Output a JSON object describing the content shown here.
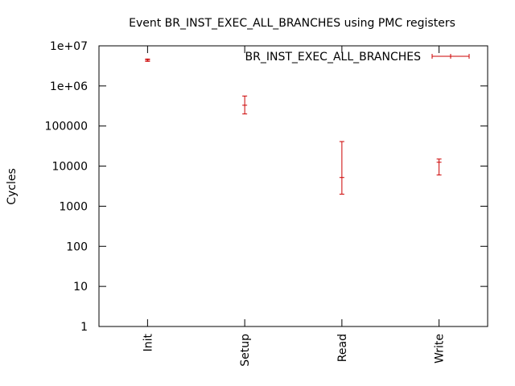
{
  "chart_data": {
    "type": "errorbar",
    "title": "Event BR_INST_EXEC_ALL_BRANCHES using PMC registers",
    "xlabel": "",
    "ylabel": "Cycles",
    "yscale": "log",
    "ylim": [
      1,
      10000000
    ],
    "yticks": [
      1,
      10,
      100,
      1000,
      10000,
      100000,
      1000000,
      10000000
    ],
    "ytick_labels": [
      "1",
      "10",
      "100",
      "1000",
      "10000",
      "100000",
      "1e+06",
      "1e+07"
    ],
    "categories": [
      "Init",
      "Setup",
      "Read",
      "Write"
    ],
    "legend": {
      "label": "BR_INST_EXEC_ALL_BRANCHES",
      "position": "top-right"
    },
    "series": [
      {
        "name": "BR_INST_EXEC_ALL_BRANCHES",
        "color": "#cc0000",
        "points": [
          {
            "category": "Init",
            "value": 4400000,
            "low": 4100000,
            "high": 4700000
          },
          {
            "category": "Setup",
            "value": 330000,
            "low": 200000,
            "high": 560000
          },
          {
            "category": "Read",
            "value": 5200,
            "low": 2000,
            "high": 41000
          },
          {
            "category": "Write",
            "value": 12500,
            "low": 6000,
            "high": 15000
          }
        ]
      }
    ]
  }
}
